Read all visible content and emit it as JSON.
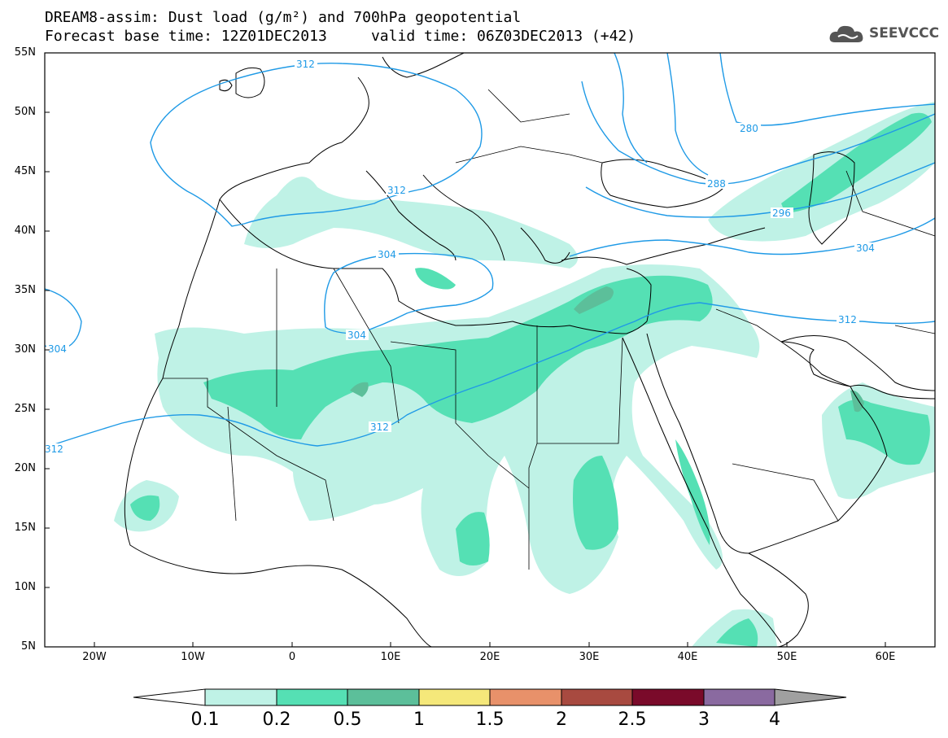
{
  "header": {
    "title_line_1": "DREAM8-assim: Dust load (g/m²) and 700hPa geopotential",
    "title_line_2": "Forecast base time: 12Z01DEC2013     valid time: 06Z03DEC2013 (+42)",
    "logo_text": "SEEVCCC"
  },
  "map": {
    "lat_labels": [
      "55N",
      "50N",
      "45N",
      "40N",
      "35N",
      "30N",
      "25N",
      "20N",
      "15N",
      "10N",
      "5N"
    ],
    "lon_labels": [
      "20W",
      "10W",
      "0",
      "10E",
      "20E",
      "30E",
      "40E",
      "50E",
      "60E"
    ],
    "contour_labels": [
      "312",
      "312",
      "304",
      "304",
      "304",
      "312",
      "312",
      "288",
      "296",
      "304",
      "312",
      "280"
    ],
    "colors": {
      "coast": "#000000",
      "contour": "#1f9ae6",
      "ocean": "#ffffff"
    }
  },
  "colorbar": {
    "labels": [
      "0.1",
      "0.2",
      "0.5",
      "1",
      "1.5",
      "2",
      "2.5",
      "3",
      "4"
    ],
    "colors": [
      "#bff2e6",
      "#55e0b4",
      "#5cbf9a",
      "#f5e87a",
      "#e8916a",
      "#a84a40",
      "#7a0a2a",
      "#8a6aa0",
      "#a0a0a0"
    ],
    "min_color": "#ffffff"
  }
}
